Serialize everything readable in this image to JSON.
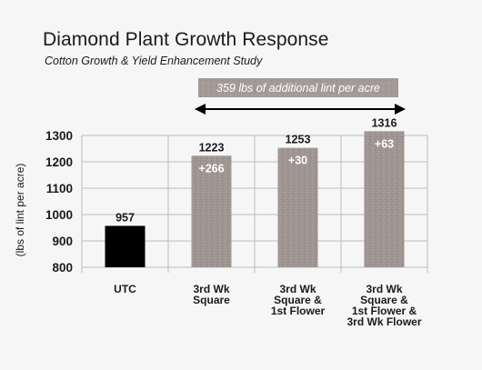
{
  "header": {
    "title": "Diamond Plant Growth Response",
    "subtitle": "Cotton Growth & Yield Enhancement Study"
  },
  "annotation": {
    "text": "359 lbs of additional lint per acre"
  },
  "colors": {
    "control": "#000000",
    "treatment": "#9f9593",
    "banner": "#9f9593",
    "grid": "#bcbcbc"
  },
  "chart_data": {
    "type": "bar",
    "title": "Diamond Plant Growth Response",
    "subtitle": "Cotton Growth & Yield Enhancement Study",
    "ylabel": "(lbs of lint per acre)",
    "xlabel": "",
    "ylim": [
      800,
      1300
    ],
    "yticks": [
      800,
      900,
      1000,
      1100,
      1200,
      1300
    ],
    "grid": true,
    "categories": [
      [
        "UTC"
      ],
      [
        "3rd Wk",
        "Square"
      ],
      [
        "3rd Wk",
        "Square &",
        "1st Flower"
      ],
      [
        "3rd Wk",
        "Square &",
        "1st Flower &",
        "3rd Wk Flower"
      ]
    ],
    "values": [
      957,
      1223,
      1253,
      1316
    ],
    "increments": [
      "",
      "+266",
      "+30",
      "+63"
    ],
    "annotations": [
      "359 lbs of additional lint per acre"
    ]
  }
}
